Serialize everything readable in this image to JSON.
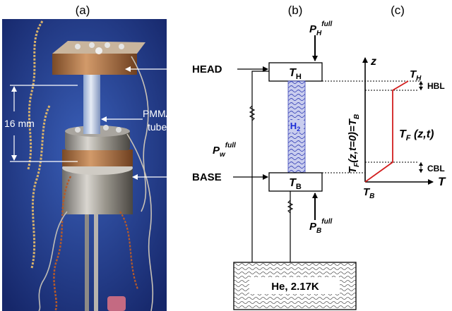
{
  "panels": {
    "a": "(a)",
    "b": "(b)",
    "c": "(c)"
  },
  "photo": {
    "dimension_label": "16 mm",
    "tube_label_line1": "PMMA",
    "tube_label_line2": "tube"
  },
  "labels": {
    "head": "HEAD",
    "base": "BASE"
  },
  "schematic": {
    "head_block": {
      "var": "T",
      "sub": "H"
    },
    "base_block": {
      "var": "T",
      "sub": "B"
    },
    "p_head": {
      "var": "P",
      "sub": "H",
      "sup": "full"
    },
    "p_wall": {
      "var": "P",
      "sub": "w",
      "sup": "full"
    },
    "p_base": {
      "var": "P",
      "sub": "B",
      "sup": "full"
    },
    "h2": {
      "main": "H",
      "sub": "2"
    },
    "bath": "He, 2.17K"
  },
  "profile": {
    "z_axis": "z",
    "t_axis": "T",
    "top_label": {
      "var": "T",
      "sub": "H"
    },
    "bottom_label": {
      "var": "T",
      "sub": "B"
    },
    "hbl": "HBL",
    "cbl": "CBL",
    "curve_label": {
      "var": "T",
      "sub": "F",
      "args": " (z,t)"
    },
    "initial_condition": {
      "var": "T",
      "sub": "F",
      "mid": "(z,t=0)=",
      "var2": "T",
      "sub2": "B"
    }
  },
  "colors": {
    "profile_line": "#d21e1e",
    "h2_text": "#1a2bd6",
    "h2_fill": "#c9cdee",
    "photo_bg": "#233d8c"
  }
}
